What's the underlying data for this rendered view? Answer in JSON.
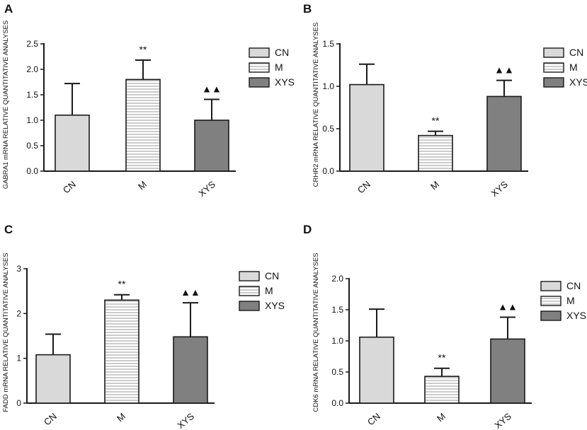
{
  "figure": {
    "description_free": true
  },
  "chart_data": [
    {
      "panel": "A",
      "type": "bar",
      "ylabel": "GABRA1 mRNA RELATIVE QUANTITATIVE ANALYSES",
      "categories": [
        "CN",
        "M",
        "XYS"
      ],
      "values": [
        1.1,
        1.8,
        1.0
      ],
      "errors": [
        0.62,
        0.38,
        0.41
      ],
      "significance": [
        "",
        "**",
        "▲▲"
      ],
      "ylim": [
        0,
        2.5
      ],
      "yticks": [
        "0.0",
        "0.5",
        "1.0",
        "1.5",
        "2.0",
        "2.5"
      ],
      "legend": [
        "CN",
        "M",
        "XYS"
      ]
    },
    {
      "panel": "B",
      "type": "bar",
      "ylabel": "CRHR2 mRNA RELATIVE QUANTITATIVE ANALYSES",
      "categories": [
        "CN",
        "M",
        "XYS"
      ],
      "values": [
        1.02,
        0.42,
        0.88
      ],
      "errors": [
        0.24,
        0.05,
        0.19
      ],
      "significance": [
        "",
        "**",
        "▲▲"
      ],
      "ylim": [
        0,
        1.5
      ],
      "yticks": [
        "0.0",
        "0.5",
        "1.0",
        "1.5"
      ],
      "legend": [
        "CN",
        "M",
        "XYS"
      ]
    },
    {
      "panel": "C",
      "type": "bar",
      "ylabel": "FADD mRNA RELATIVE QUANTITATIVE ANALYSES",
      "categories": [
        "CN",
        "M",
        "XYS"
      ],
      "values": [
        1.08,
        2.3,
        1.48
      ],
      "errors": [
        0.46,
        0.12,
        0.76
      ],
      "significance": [
        "",
        "**",
        "▲▲"
      ],
      "ylim": [
        0,
        3
      ],
      "yticks": [
        "0",
        "1",
        "2",
        "3"
      ],
      "legend": [
        "CN",
        "M",
        "XYS"
      ]
    },
    {
      "panel": "D",
      "type": "bar",
      "ylabel": "CDK6 mRNA RELATIVE QUANTITATIVE ANALYSES",
      "categories": [
        "CN",
        "M",
        "XYS"
      ],
      "values": [
        1.06,
        0.43,
        1.03
      ],
      "errors": [
        0.45,
        0.13,
        0.35
      ],
      "significance": [
        "",
        "**",
        "▲▲"
      ],
      "ylim": [
        0,
        2.0
      ],
      "yticks": [
        "0.0",
        "0.5",
        "1.0",
        "1.5",
        "2.0"
      ],
      "legend": [
        "CN",
        "M",
        "XYS"
      ]
    }
  ],
  "colors": {
    "CN": "#d9d9d9",
    "M": "#ffffff",
    "M_stripes": "#9a9a9a",
    "XYS": "#808080",
    "axis": "#1a1a1a"
  }
}
